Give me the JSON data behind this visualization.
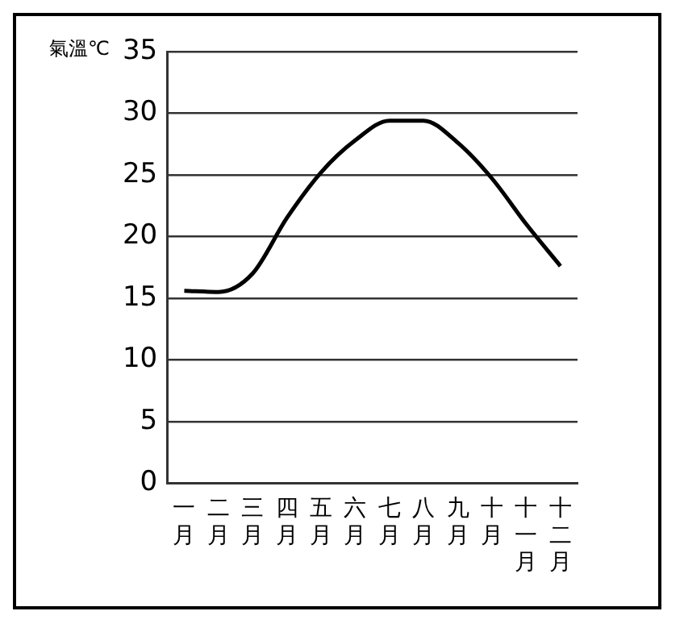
{
  "chart_data": {
    "type": "line",
    "ylabel": "氣溫℃",
    "categories": [
      "一月",
      "二月",
      "三月",
      "四月",
      "五月",
      "六月",
      "七月",
      "八月",
      "九月",
      "十月",
      "十一月",
      "十二月"
    ],
    "series": [
      {
        "color": "#000000",
        "values": [
          15.6,
          15.5,
          17,
          21.5,
          25.2,
          27.8,
          29.4,
          29.4,
          27.6,
          24.7,
          21,
          17.6
        ]
      }
    ],
    "ylim": [
      0,
      35
    ],
    "yticks": [
      0,
      5,
      10,
      15,
      20,
      25,
      30,
      35
    ],
    "grid": "y",
    "marker": "none",
    "line_style": "solid"
  }
}
